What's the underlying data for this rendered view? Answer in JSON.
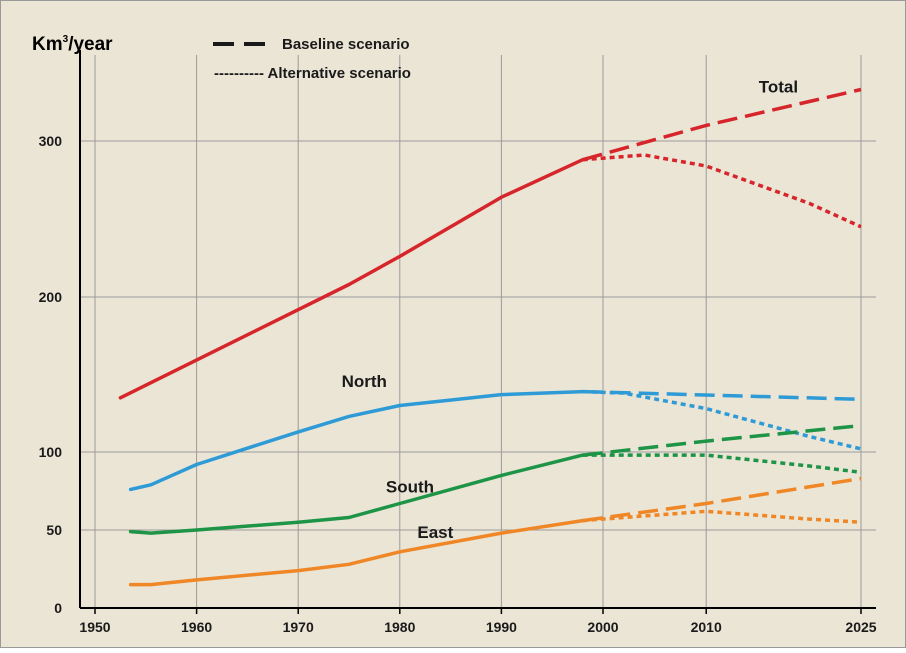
{
  "chart_data": {
    "type": "line",
    "ylabel": "Km³/year",
    "ylabel_base": "Km",
    "ylabel_sup": "3",
    "ylabel_rest": "/year",
    "xlim": [
      1946,
      2027
    ],
    "y_ticks": [
      {
        "value": 0,
        "label": "0"
      },
      {
        "value": 50,
        "label": "50"
      },
      {
        "value": 100,
        "label": "100"
      },
      {
        "value": 200,
        "label": "200"
      },
      {
        "value": 300,
        "label": "300"
      }
    ],
    "x_ticks": [
      {
        "value": 1950,
        "label": "1950"
      },
      {
        "value": 1960,
        "label": "1960"
      },
      {
        "value": 1970,
        "label": "1970"
      },
      {
        "value": 1980,
        "label": "1980"
      },
      {
        "value": 1990,
        "label": "1990"
      },
      {
        "value": 2000,
        "label": "2000"
      },
      {
        "value": 2010,
        "label": "2010"
      },
      {
        "value": 2025,
        "label": "2025"
      }
    ],
    "grid": true,
    "legend_position": "top-left",
    "legend": [
      {
        "style": "dashed",
        "label": "Baseline scenario"
      },
      {
        "style": "dotted",
        "label": "Alternative scenario",
        "prefix": "----------"
      }
    ],
    "series": [
      {
        "name": "Total",
        "color": "#d6262b",
        "historical": [
          [
            1952.5,
            135
          ],
          [
            1975,
            208
          ],
          [
            1980,
            226
          ],
          [
            1990,
            264
          ],
          [
            1998,
            288
          ]
        ],
        "baseline": [
          [
            1998,
            288
          ],
          [
            2010,
            310
          ],
          [
            2025,
            333
          ]
        ],
        "alternative": [
          [
            1998,
            288
          ],
          [
            2004,
            291
          ],
          [
            2010,
            284
          ],
          [
            2020,
            260
          ],
          [
            2025,
            245
          ]
        ]
      },
      {
        "name": "North",
        "color": "#2f9bd6",
        "historical": [
          [
            1953.5,
            76
          ],
          [
            1955.5,
            79
          ],
          [
            1960,
            92
          ],
          [
            1970,
            113
          ],
          [
            1975,
            123
          ],
          [
            1980,
            130
          ],
          [
            1990,
            137
          ],
          [
            1998,
            139
          ]
        ],
        "baseline": [
          [
            1998,
            139
          ],
          [
            2025,
            134
          ]
        ],
        "alternative": [
          [
            1998,
            139
          ],
          [
            2002,
            138
          ],
          [
            2010,
            128
          ],
          [
            2020,
            110
          ],
          [
            2025,
            102
          ]
        ]
      },
      {
        "name": "South",
        "color": "#1e9447",
        "historical": [
          [
            1953.5,
            49
          ],
          [
            1955.5,
            48
          ],
          [
            1960,
            50
          ],
          [
            1970,
            55
          ],
          [
            1975,
            58
          ],
          [
            1980,
            67
          ],
          [
            1990,
            85
          ],
          [
            1998,
            98
          ]
        ],
        "baseline": [
          [
            1998,
            98
          ],
          [
            2010,
            107
          ],
          [
            2025,
            117
          ]
        ],
        "alternative": [
          [
            1998,
            98
          ],
          [
            2010,
            98
          ],
          [
            2020,
            91
          ],
          [
            2025,
            87
          ]
        ]
      },
      {
        "name": "East",
        "color": "#ef8727",
        "historical": [
          [
            1953.5,
            15
          ],
          [
            1955.5,
            15
          ],
          [
            1960,
            18
          ],
          [
            1970,
            24
          ],
          [
            1975,
            28
          ],
          [
            1980,
            36
          ],
          [
            1990,
            48
          ],
          [
            1998,
            56
          ]
        ],
        "baseline": [
          [
            1998,
            56
          ],
          [
            2010,
            67
          ],
          [
            2025,
            83
          ]
        ],
        "alternative": [
          [
            1998,
            56
          ],
          [
            2010,
            62
          ],
          [
            2020,
            57
          ],
          [
            2025,
            55
          ]
        ]
      }
    ],
    "annotations": [
      {
        "text": "Total",
        "x": 2017,
        "y": 331
      },
      {
        "text": "North",
        "x": 1976.5,
        "y": 142
      },
      {
        "text": "South",
        "x": 1981,
        "y": 74
      },
      {
        "text": "East",
        "x": 1983.5,
        "y": 45
      }
    ]
  }
}
